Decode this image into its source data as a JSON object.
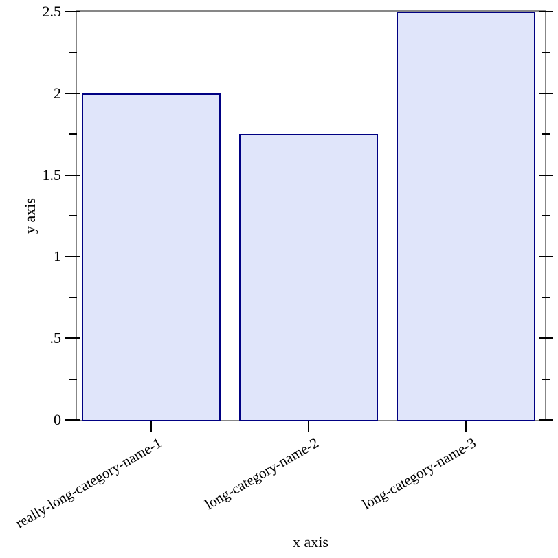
{
  "chart_data": {
    "type": "bar",
    "title": "",
    "xlabel": "x axis",
    "ylabel": "y axis",
    "categories": [
      "really-long-category-name-1",
      "long-category-name-2",
      "long-category-name-3"
    ],
    "values": [
      2,
      1.75,
      2.5
    ],
    "ylim": [
      0,
      2.5
    ],
    "y_major_ticks": [
      {
        "value": 0,
        "label": "0"
      },
      {
        "value": 0.5,
        "label": ".5"
      },
      {
        "value": 1,
        "label": "1"
      },
      {
        "value": 1.5,
        "label": "1.5"
      },
      {
        "value": 2,
        "label": "2"
      },
      {
        "value": 2.5,
        "label": "2.5"
      }
    ],
    "y_minor_ticks": [
      0.25,
      0.75,
      1.25,
      1.75,
      2.25
    ],
    "x_tick_label_angle_deg": -30,
    "grid": "off",
    "legend": "none",
    "colors": {
      "bar_fill": "#e0e5fa",
      "bar_border": "#000082",
      "axis_line": "#878787",
      "tick": "#000000",
      "text": "#000000",
      "background": "#ffffff"
    }
  }
}
